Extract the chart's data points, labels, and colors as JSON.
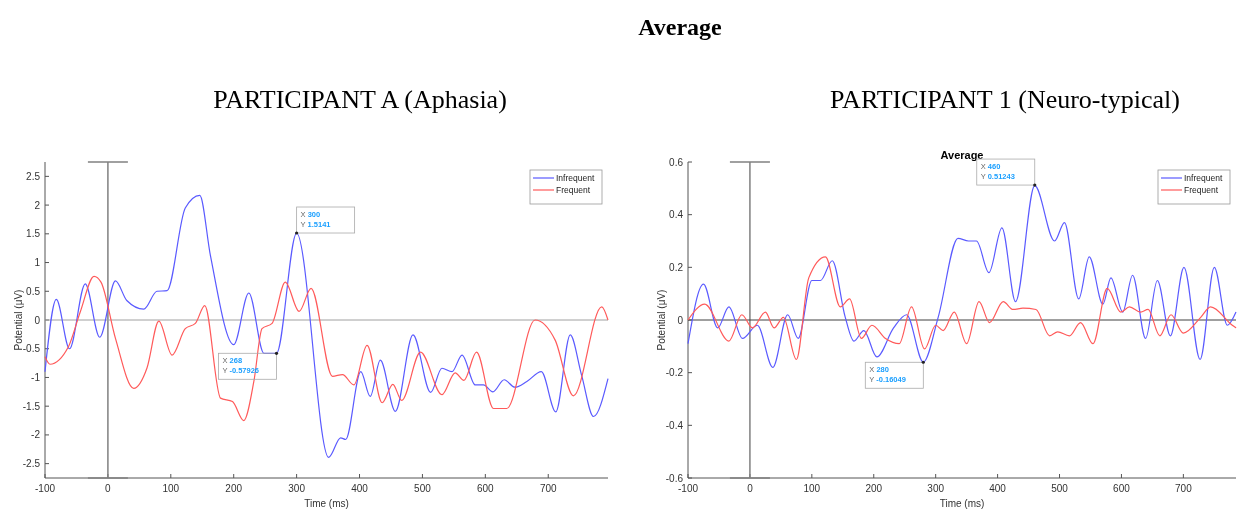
{
  "chart_data": [
    {
      "type": "line",
      "title": "PARTICIPANT A (Aphasia)",
      "xlabel": "Time (ms)",
      "ylabel": "Potential (μV)",
      "xlim": [
        -100,
        795
      ],
      "ylim": [
        -2.75,
        2.75
      ],
      "xticks": [
        -100,
        0,
        100,
        200,
        300,
        400,
        500,
        600,
        700
      ],
      "yticks": [
        -2.5,
        -2,
        -1.5,
        -1,
        -0.5,
        0,
        0.5,
        1,
        1.5,
        2,
        2.5
      ],
      "legend": "top right",
      "ref_lines": [
        {
          "axis": "x",
          "value": 0,
          "color": "#808080"
        },
        {
          "axis": "y",
          "value": 0,
          "color": "#a0a0a0"
        }
      ],
      "annotations": [
        "Average",
        {
          "text": "X 300\nY 1.5141",
          "x": 300,
          "y": 1.5141
        },
        {
          "text": "X 268\nY -0.57926",
          "x": 268,
          "y": -0.57926
        }
      ],
      "series": [
        {
          "name": "Infrequent",
          "color": "#5a5aff",
          "x": [
            -100,
            -82,
            -61,
            -36,
            -13,
            12,
            30,
            57,
            78,
            94,
            123,
            146,
            163,
            200,
            224,
            248,
            268,
            300,
            351,
            370,
            378,
            402,
            417,
            433,
            457,
            485,
            513,
            531,
            547,
            563,
            584,
            597,
            612,
            630,
            647,
            666,
            689,
            712,
            735,
            753,
            772,
            795
          ],
          "values": [
            -0.9,
            0.36,
            -0.5,
            0.63,
            -0.3,
            0.68,
            0.34,
            0.19,
            0.5,
            0.51,
            1.95,
            2.17,
            1.12,
            -0.43,
            0.47,
            -0.58,
            -0.58,
            1.51,
            -2.39,
            -2.05,
            -2.08,
            -0.9,
            -1.33,
            -0.7,
            -1.59,
            -0.26,
            -1.26,
            -0.84,
            -0.9,
            -0.61,
            -1.13,
            -1.13,
            -1.25,
            -1.04,
            -1.17,
            -1.07,
            -0.9,
            -1.6,
            -0.26,
            -0.96,
            -1.68,
            -1.02
          ]
        },
        {
          "name": "Frequent",
          "color": "#ff5a5a",
          "x": [
            -100,
            -92,
            -63,
            -44,
            -22,
            -11,
            12,
            41,
            62,
            81,
            102,
            123,
            139,
            154,
            179,
            198,
            216,
            232,
            245,
            261,
            282,
            304,
            323,
            357,
            373,
            391,
            412,
            436,
            453,
            467,
            497,
            531,
            552,
            566,
            586,
            613,
            634,
            679,
            711,
            740,
            785,
            795
          ],
          "values": [
            -0.64,
            -0.77,
            -0.47,
            0.14,
            0.76,
            0.66,
            -0.32,
            -1.19,
            -0.84,
            -0.02,
            -0.61,
            -0.15,
            -0.06,
            0.25,
            -1.36,
            -1.42,
            -1.75,
            -1.07,
            -0.15,
            -0.06,
            0.66,
            0.15,
            0.55,
            -0.98,
            -0.95,
            -1.13,
            -0.44,
            -1.44,
            -1.12,
            -1.4,
            -0.56,
            -1.3,
            -0.92,
            -1.05,
            -0.56,
            -1.54,
            -1.54,
            0,
            -0.35,
            -1.32,
            0.23,
            0
          ]
        }
      ]
    },
    {
      "type": "line",
      "title": "PARTICIPANT 1 (Neuro-typical)",
      "subtitle": "Average",
      "xlabel": "Time (ms)",
      "ylabel": "Potential (μV)",
      "xlim": [
        -100,
        785
      ],
      "ylim": [
        -0.6,
        0.6
      ],
      "xticks": [
        -100,
        0,
        100,
        200,
        300,
        400,
        500,
        600,
        700
      ],
      "yticks": [
        -0.6,
        -0.4,
        -0.2,
        0,
        0.2,
        0.4,
        0.6
      ],
      "legend": "top right",
      "ref_lines": [
        {
          "axis": "x",
          "value": 0,
          "color": "#808080"
        },
        {
          "axis": "y",
          "value": 0,
          "color": "#404040"
        }
      ],
      "annotations": [
        {
          "text": "X 460\nY 0.51243",
          "x": 460,
          "y": 0.51243
        },
        {
          "text": "X 280\nY -0.16049",
          "x": 280,
          "y": -0.16049
        }
      ],
      "series": [
        {
          "name": "Infrequent",
          "color": "#5a5aff",
          "x": [
            -100,
            -75,
            -52,
            -34,
            -12,
            12,
            37,
            61,
            78,
            100,
            114,
            133,
            154,
            168,
            184,
            205,
            232,
            253,
            280,
            304,
            336,
            353,
            366,
            386,
            407,
            429,
            460,
            492,
            508,
            531,
            548,
            570,
            583,
            602,
            618,
            639,
            658,
            679,
            701,
            727,
            750,
            771,
            785
          ],
          "values": [
            -0.09,
            0.136,
            -0.03,
            0.05,
            -0.07,
            -0.02,
            -0.18,
            0.02,
            -0.07,
            0.15,
            0.15,
            0.225,
            0.01,
            -0.08,
            -0.04,
            -0.14,
            -0.03,
            0.02,
            -0.16,
            0.01,
            0.31,
            0.3,
            0.3,
            0.18,
            0.35,
            0.07,
            0.51,
            0.3,
            0.37,
            0.08,
            0.24,
            0.06,
            0.16,
            0.03,
            0.17,
            -0.07,
            0.15,
            -0.06,
            0.2,
            -0.15,
            0.2,
            -0.02,
            0.03
          ]
        },
        {
          "name": "Frequent",
          "color": "#ff5a5a",
          "x": [
            -100,
            -73,
            -34,
            -13,
            4,
            25,
            39,
            54,
            75,
            95,
            122,
            146,
            161,
            180,
            197,
            219,
            241,
            261,
            282,
            300,
            312,
            330,
            350,
            370,
            387,
            409,
            425,
            441,
            462,
            484,
            497,
            516,
            534,
            554,
            577,
            599,
            613,
            631,
            643,
            662,
            680,
            700,
            728,
            744,
            779,
            785
          ],
          "values": [
            0,
            0.06,
            -0.08,
            0.02,
            -0.03,
            0.03,
            -0.03,
            0.01,
            -0.15,
            0.16,
            0.24,
            0.05,
            0.08,
            -0.07,
            -0.02,
            -0.07,
            -0.09,
            0.05,
            -0.11,
            -0.02,
            -0.04,
            0.03,
            -0.09,
            0.07,
            -0.01,
            0.07,
            0.04,
            0.045,
            0.04,
            -0.06,
            -0.045,
            -0.06,
            -0.01,
            -0.09,
            0.12,
            0.03,
            0.05,
            0.03,
            0.04,
            -0.06,
            0.02,
            -0.05,
            0.01,
            0.05,
            -0.02,
            -0.03
          ]
        }
      ]
    }
  ]
}
